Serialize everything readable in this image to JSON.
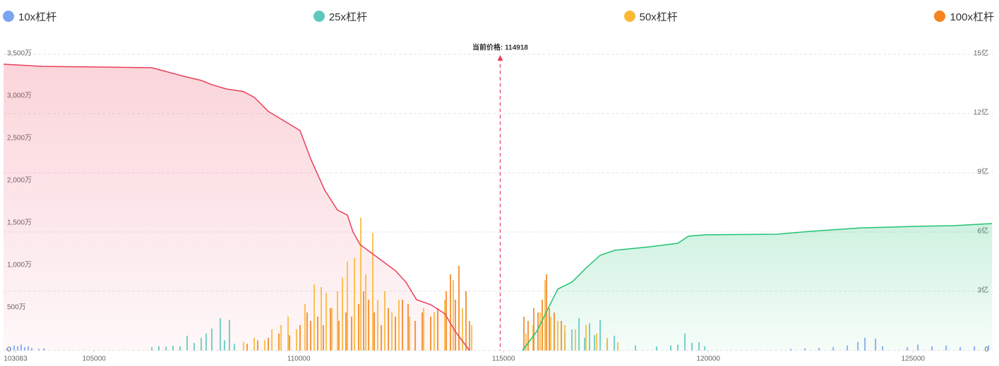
{
  "chart_data": {
    "type": "liquidation",
    "series": [
      {
        "name": "10x杠杆",
        "color": "#7ba4ef",
        "x": [
          102876,
          102962,
          103049,
          103135,
          103221,
          103307,
          103393,
          103479,
          103652,
          103773,
          122014,
          122359,
          122704,
          123049,
          123393,
          123652,
          123824,
          124083,
          124255,
          124859,
          125117,
          125462,
          125807,
          126152,
          126497,
          126841
        ],
        "values": [
          30,
          40,
          60,
          50,
          70,
          40,
          50,
          30,
          20,
          25,
          20,
          25,
          30,
          40,
          60,
          100,
          150,
          140,
          50,
          40,
          70,
          50,
          60,
          40,
          50,
          60
        ]
      },
      {
        "name": "25x杠杆",
        "color": "#5ec8bd",
        "x": [
          106411,
          106583,
          106756,
          106928,
          107100,
          107273,
          107445,
          107617,
          107738,
          107876,
          108083,
          108186,
          108307,
          108428,
          116497,
          116669,
          116842,
          116980,
          117100,
          117221,
          117359,
          117531,
          117704,
          118221,
          118738,
          119083,
          119255,
          119428,
          119600,
          119773,
          119911
        ],
        "values": [
          40,
          50,
          45,
          55,
          50,
          175,
          90,
          150,
          200,
          258,
          383,
          120,
          362,
          80,
          200,
          250,
          383,
          150,
          320,
          180,
          360,
          120,
          175,
          60,
          50,
          60,
          70,
          200,
          90,
          100,
          50
        ]
      },
      {
        "name": "50x杠杆",
        "color": "#f9b934",
        "x": [
          108652,
          108911,
          109169,
          109342,
          109566,
          109738,
          109945,
          110152,
          110376,
          110548,
          110669,
          110807,
          110945,
          111066,
          111186,
          111359,
          111514,
          111635,
          111807,
          111928,
          112100,
          112273,
          112445,
          112704,
          113048,
          113307,
          113566,
          113773,
          113997,
          114221,
          115548,
          115721,
          115893,
          116014,
          116152,
          116324,
          116497,
          116755,
          117014,
          117273,
          117531,
          117790
        ],
        "values": [
          100,
          150,
          120,
          250,
          300,
          400,
          250,
          550,
          780,
          750,
          680,
          500,
          700,
          860,
          1050,
          1092,
          1570,
          900,
          1392,
          600,
          700,
          450,
          600,
          400,
          500,
          450,
          600,
          830,
          500,
          300,
          200,
          300,
          450,
          830,
          400,
          350,
          300,
          250,
          300,
          200,
          150,
          100
        ]
      },
      {
        "name": "100x杠杆",
        "color": "#f5841f",
        "x": [
          108738,
          108997,
          109255,
          109514,
          109773,
          110031,
          110204,
          110290,
          110462,
          110600,
          110773,
          110979,
          111152,
          111290,
          111462,
          111583,
          111704,
          111842,
          112014,
          112186,
          112359,
          112531,
          112669,
          112842,
          113014,
          113221,
          113393,
          113600,
          113704,
          113824,
          113911,
          114083,
          114169,
          115497,
          115600,
          115738,
          115842,
          115945,
          116049,
          116118,
          116238,
          116411
        ],
        "values": [
          80,
          120,
          150,
          200,
          180,
          300,
          450,
          350,
          400,
          300,
          500,
          350,
          450,
          400,
          550,
          700,
          600,
          450,
          300,
          500,
          400,
          600,
          550,
          350,
          450,
          400,
          500,
          700,
          900,
          600,
          1000,
          700,
          350,
          400,
          350,
          500,
          450,
          600,
          900,
          500,
          450,
          350
        ]
      }
    ],
    "lines": [
      {
        "color": "#e8405a",
        "axis": "y2",
        "x": [
          102790,
          103738,
          106411,
          106669,
          107187,
          107617,
          107876,
          108221,
          108652,
          108911,
          109255,
          109600,
          110031,
          110290,
          110635,
          110945,
          111186,
          111324,
          111497,
          112014,
          112359,
          112617,
          112876,
          113221,
          113566,
          113824,
          114169
        ],
        "values": [
          14.5,
          14.39,
          14.32,
          14.18,
          13.89,
          13.68,
          13.46,
          13.25,
          13.11,
          12.82,
          12.11,
          11.68,
          11.14,
          9.71,
          8.11,
          7.11,
          6.86,
          6.0,
          5.36,
          4.57,
          4.04,
          3.46,
          2.57,
          2.32,
          1.86,
          0.96,
          0
        ]
      },
      {
        "color": "#22c373",
        "axis": "y2",
        "x": [
          115462,
          115807,
          116066,
          116324,
          116669,
          117014,
          117359,
          117704,
          118221,
          118566,
          119255,
          119514,
          119945,
          121669,
          122531,
          123738,
          125118,
          125980,
          126928
        ],
        "values": [
          0,
          0.96,
          2.04,
          3.11,
          3.46,
          4.18,
          4.82,
          5.07,
          5.18,
          5.25,
          5.43,
          5.79,
          5.86,
          5.89,
          6.04,
          6.21,
          6.29,
          6.32,
          6.43
        ]
      }
    ],
    "annotation": {
      "text": "当前价格: 114918",
      "value": 114918,
      "color": "#e8405a"
    },
    "xlim": [
      102790,
      126960
    ],
    "xticks": [
      103083,
      105000,
      110000,
      115000,
      120000,
      125000
    ],
    "ylim": [
      0,
      3500
    ],
    "yticks": [
      0,
      {
        "value": 500,
        "label": "500万"
      },
      {
        "value": 1000,
        "label": "1,000万"
      },
      {
        "value": 1500,
        "label": "1,500万"
      },
      {
        "value": 2000,
        "label": "2,000万"
      },
      {
        "value": 2500,
        "label": "2,500万"
      },
      {
        "value": 3000,
        "label": "3,000万"
      },
      {
        "value": 3500,
        "label": "3,500万"
      }
    ],
    "y2lim": [
      0,
      15
    ],
    "y2ticks": [
      0,
      {
        "value": 3,
        "label": "3亿"
      },
      {
        "value": 6,
        "label": "6亿"
      },
      {
        "value": 9,
        "label": "9亿"
      },
      {
        "value": 12,
        "label": "12亿"
      },
      {
        "value": 15,
        "label": "15亿"
      }
    ],
    "grid": true
  }
}
